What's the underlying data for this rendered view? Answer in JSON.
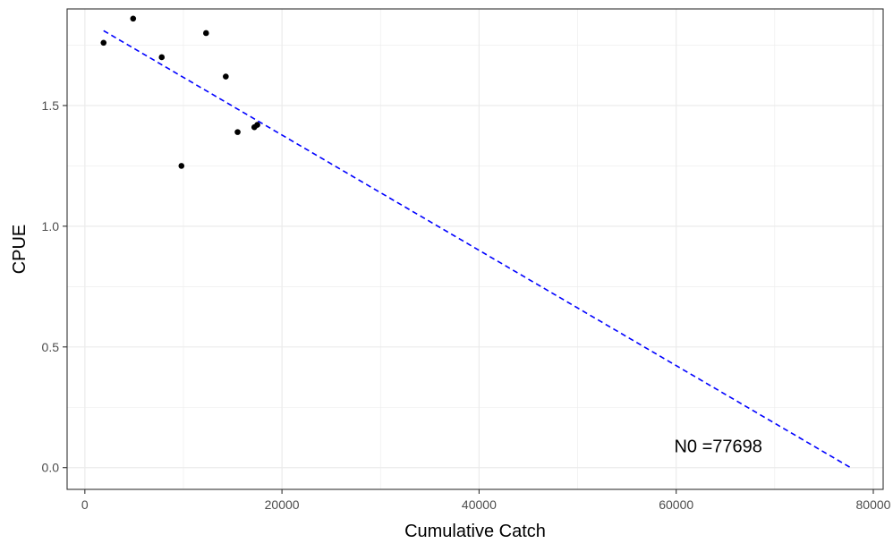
{
  "chart_data": {
    "type": "scatter",
    "title": "",
    "xlabel": "Cumulative Catch",
    "ylabel": "CPUE",
    "xlim": [
      -1800,
      81000
    ],
    "ylim": [
      -0.09,
      1.9
    ],
    "x_ticks": [
      0,
      20000,
      40000,
      60000,
      80000
    ],
    "x_tick_labels": [
      "0",
      "20000",
      "40000",
      "60000",
      "80000"
    ],
    "y_ticks": [
      0.0,
      0.5,
      1.0,
      1.5
    ],
    "y_tick_labels": [
      "0.0",
      "0.5",
      "1.0",
      "1.5"
    ],
    "grid": true,
    "legend": "none",
    "series": [
      {
        "points": [
          {
            "x": 1900,
            "y": 1.76
          },
          {
            "x": 4900,
            "y": 1.86
          },
          {
            "x": 7800,
            "y": 1.7
          },
          {
            "x": 9800,
            "y": 1.25
          },
          {
            "x": 12300,
            "y": 1.8
          },
          {
            "x": 14300,
            "y": 1.62
          },
          {
            "x": 15500,
            "y": 1.39
          },
          {
            "x": 17200,
            "y": 1.41
          },
          {
            "x": 17500,
            "y": 1.42
          }
        ],
        "color": "#000000"
      }
    ],
    "fit_line": {
      "style": "dashed",
      "color": "#0000ff",
      "points": [
        {
          "x": 1900,
          "y": 1.81
        },
        {
          "x": 77698,
          "y": 0.0
        }
      ]
    },
    "annotations": [
      {
        "text": "N0 =77698",
        "x": 59800,
        "y": 0.09
      }
    ]
  }
}
